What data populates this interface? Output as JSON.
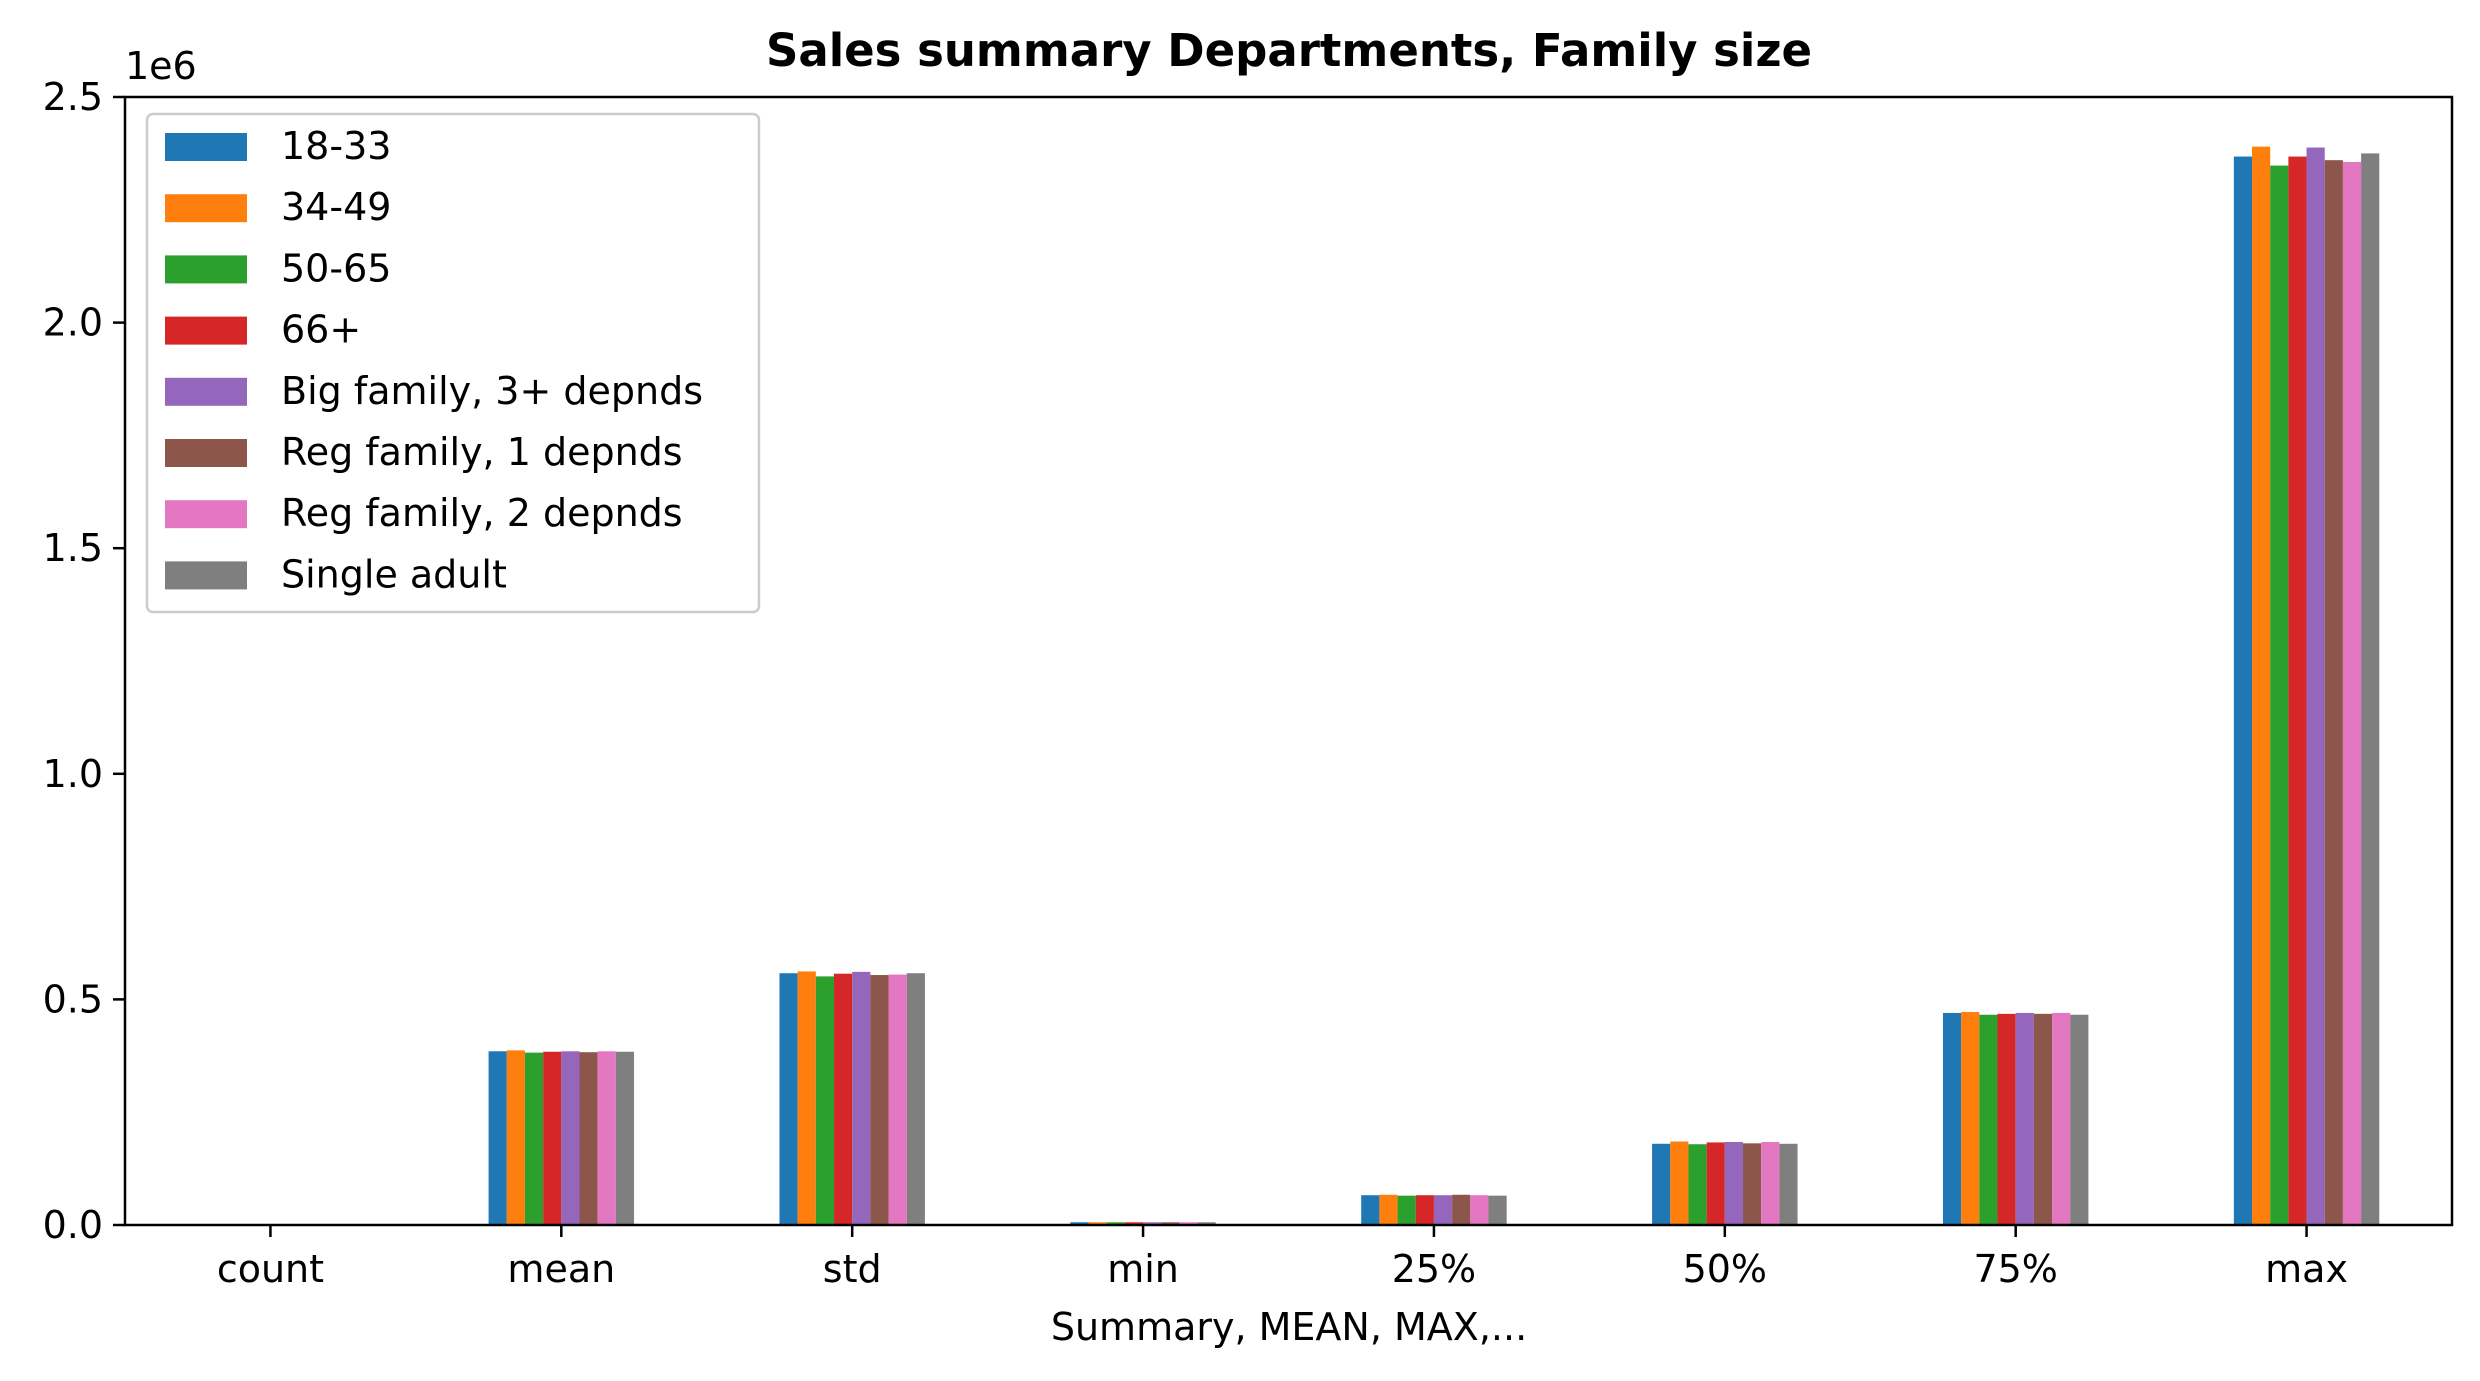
{
  "chart_data": {
    "type": "bar",
    "title": "Sales summary Departments, Family size",
    "xlabel": "Summary, MEAN, MAX,...",
    "ylabel": "",
    "y_offset_label": "1e6",
    "y_scale": 1000000,
    "ylim": [
      0,
      2500000
    ],
    "yticks": [
      0,
      500000,
      1000000,
      1500000,
      2000000,
      2500000
    ],
    "ytick_labels": [
      "0.0",
      "0.5",
      "1.0",
      "1.5",
      "2.0",
      "2.5"
    ],
    "categories": [
      "count",
      "mean",
      "std",
      "min",
      "25%",
      "50%",
      "75%",
      "max"
    ],
    "legend_position": "upper-left",
    "grid": false,
    "series": [
      {
        "name": "18-33",
        "color": "#1f77b4",
        "values": [
          0,
          385000,
          558000,
          6000,
          66000,
          180000,
          470000,
          2368000
        ]
      },
      {
        "name": "34-49",
        "color": "#ff7f0e",
        "values": [
          0,
          387000,
          562000,
          6000,
          67000,
          185000,
          472000,
          2390000
        ]
      },
      {
        "name": "50-65",
        "color": "#2ca02c",
        "values": [
          0,
          382000,
          551000,
          6000,
          65000,
          179000,
          466000,
          2348000
        ]
      },
      {
        "name": "66+",
        "color": "#d62728",
        "values": [
          0,
          384000,
          557000,
          6000,
          66000,
          183000,
          468000,
          2368000
        ]
      },
      {
        "name": "Big family, 3+ depnds",
        "color": "#9467bd",
        "values": [
          0,
          385000,
          561000,
          6000,
          66000,
          184000,
          470000,
          2388000
        ]
      },
      {
        "name": "Reg family, 1 depnds",
        "color": "#8c564b",
        "values": [
          0,
          383000,
          554000,
          6000,
          67000,
          181000,
          468000,
          2360000
        ]
      },
      {
        "name": "Reg family, 2 depnds",
        "color": "#e377c2",
        "values": [
          0,
          385000,
          555000,
          6000,
          66000,
          184000,
          470000,
          2356000
        ]
      },
      {
        "name": "Single adult",
        "color": "#7f7f7f",
        "values": [
          0,
          384000,
          558000,
          6000,
          65000,
          180000,
          466000,
          2375000
        ]
      }
    ]
  }
}
